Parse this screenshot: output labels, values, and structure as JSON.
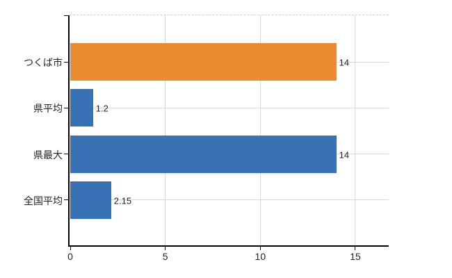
{
  "chart_data": {
    "type": "bar",
    "orientation": "horizontal",
    "title": "",
    "categories": [
      "つくば市",
      "県平均",
      "県最大",
      "全国平均"
    ],
    "values": [
      14,
      1.2,
      14,
      2.15
    ],
    "value_labels": [
      "14",
      "1.2",
      "14",
      "2.15"
    ],
    "bar_colors": [
      "#EA8B32",
      "#3872B4",
      "#3872B4",
      "#3872B4"
    ],
    "x_ticks": [
      0,
      5,
      10,
      15
    ],
    "x_tick_labels": [
      "0",
      "5",
      "10",
      "15"
    ],
    "xlim": [
      0,
      16.8
    ],
    "grid": true,
    "legend_position": "none"
  },
  "colors": {
    "background": "#FFFFFF",
    "bar_highlight": "#EA8B32",
    "bar_default": "#3872B4",
    "gridline": "#D4DAD4",
    "axis": "#000000",
    "text": "#222222"
  }
}
